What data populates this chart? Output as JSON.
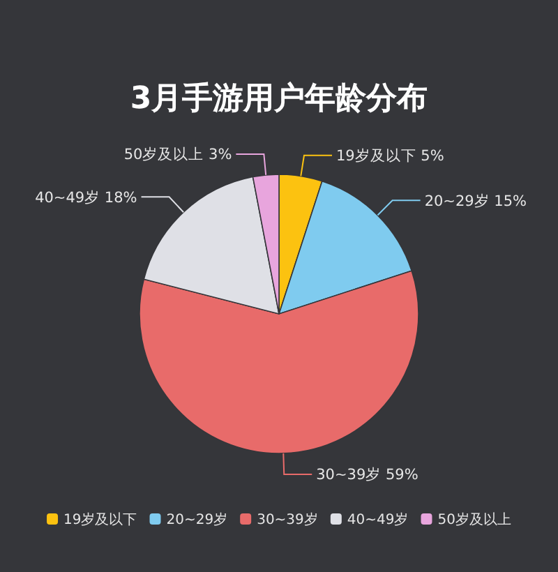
{
  "chart_data": {
    "type": "pie",
    "title": "3月手游用户年龄分布",
    "categories": [
      "19岁及以下",
      "20~29岁",
      "30~39岁",
      "40~49岁",
      "50岁及以上"
    ],
    "values": [
      5,
      15,
      59,
      18,
      3
    ],
    "colors": [
      "#fcc210",
      "#7fcbef",
      "#e86b6a",
      "#dfe0e6",
      "#e8a5dd"
    ],
    "value_labels": [
      "5%",
      "15%",
      "59%",
      "18%",
      "3%"
    ],
    "legend": "bottom"
  }
}
